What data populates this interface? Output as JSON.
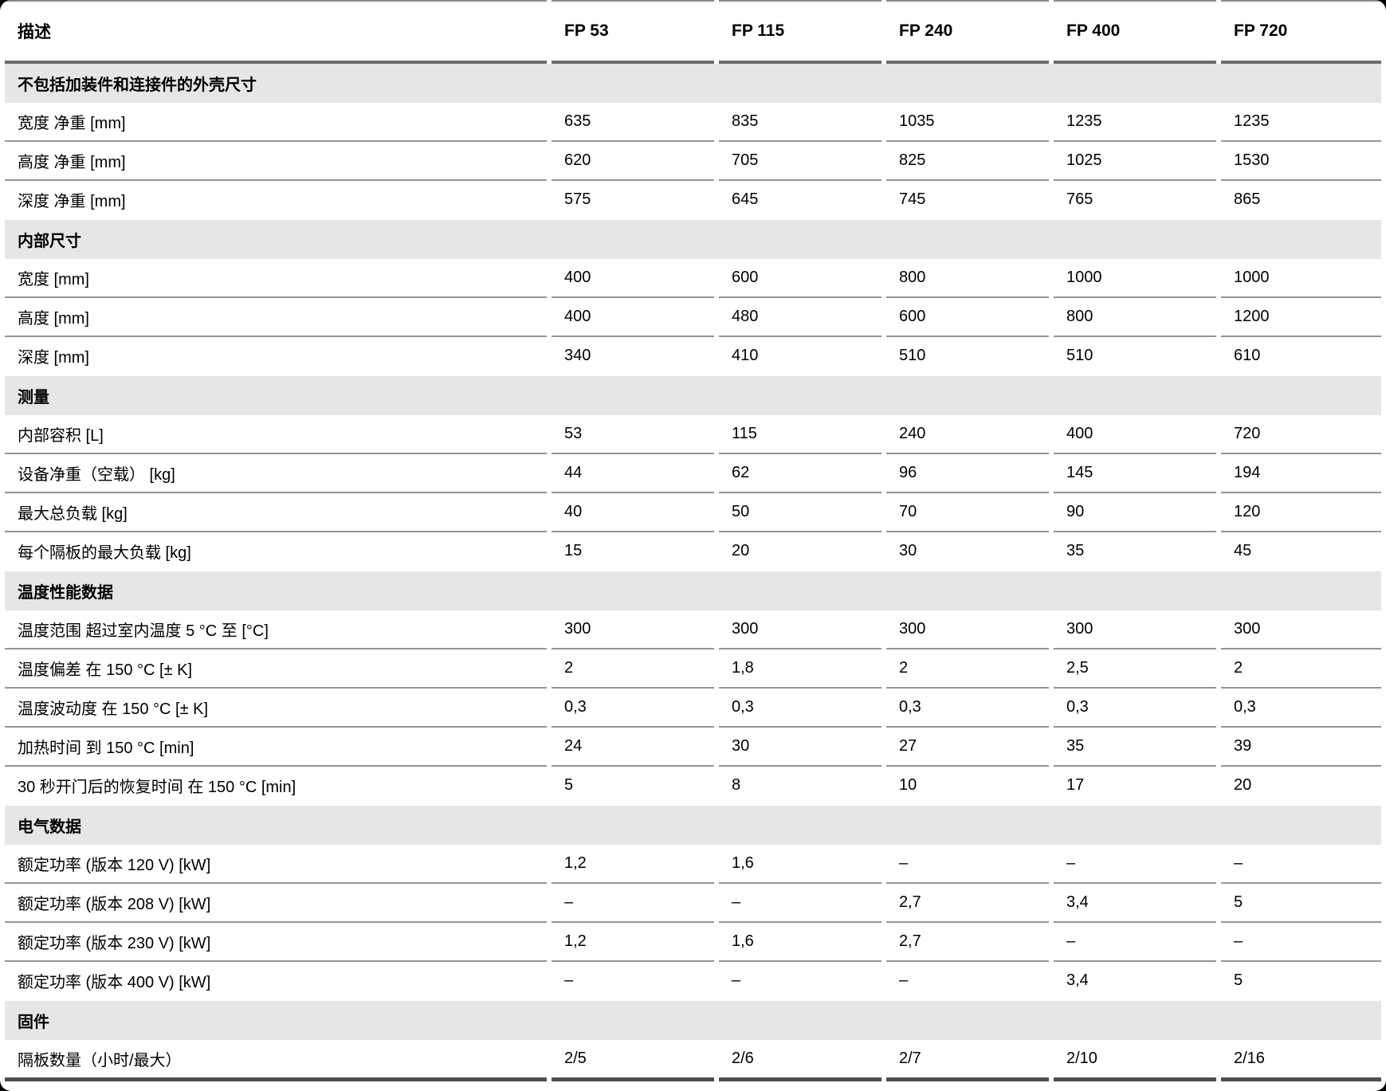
{
  "colors": {
    "section_band": "#e6e6e6",
    "row_separator": "#949494",
    "header_underline": "#6b6b6b",
    "table_top_border": "#8a8a8a",
    "table_bottom_border": "#4e4e4e",
    "text": "#000000",
    "background": "#ffffff"
  },
  "table": {
    "header": {
      "description": "描述",
      "models": [
        "FP 53",
        "FP 115",
        "FP 240",
        "FP 400",
        "FP 720"
      ]
    },
    "sections": [
      {
        "title": "不包括加装件和连接件的外壳尺寸",
        "rows": [
          {
            "label": "宽度 净重 [mm]",
            "values": [
              "635",
              "835",
              "1035",
              "1235",
              "1235"
            ]
          },
          {
            "label": "高度 净重 [mm]",
            "values": [
              "620",
              "705",
              "825",
              "1025",
              "1530"
            ]
          },
          {
            "label": "深度 净重 [mm]",
            "values": [
              "575",
              "645",
              "745",
              "765",
              "865"
            ]
          }
        ]
      },
      {
        "title": "内部尺寸",
        "rows": [
          {
            "label": "宽度 [mm]",
            "values": [
              "400",
              "600",
              "800",
              "1000",
              "1000"
            ]
          },
          {
            "label": "高度 [mm]",
            "values": [
              "400",
              "480",
              "600",
              "800",
              "1200"
            ]
          },
          {
            "label": "深度 [mm]",
            "values": [
              "340",
              "410",
              "510",
              "510",
              "610"
            ]
          }
        ]
      },
      {
        "title": "测量",
        "rows": [
          {
            "label": "内部容积 [L]",
            "values": [
              "53",
              "115",
              "240",
              "400",
              "720"
            ]
          },
          {
            "label": "设备净重（空载） [kg]",
            "values": [
              "44",
              "62",
              "96",
              "145",
              "194"
            ]
          },
          {
            "label": "最大总负载 [kg]",
            "values": [
              "40",
              "50",
              "70",
              "90",
              "120"
            ]
          },
          {
            "label": "每个隔板的最大负载 [kg]",
            "values": [
              "15",
              "20",
              "30",
              "35",
              "45"
            ]
          }
        ]
      },
      {
        "title": "温度性能数据",
        "rows": [
          {
            "label": "温度范围 超过室内温度 5 °C 至 [°C]",
            "values": [
              "300",
              "300",
              "300",
              "300",
              "300"
            ]
          },
          {
            "label": "温度偏差 在 150 °C [± K]",
            "values": [
              "2",
              "1,8",
              "2",
              "2,5",
              "2"
            ]
          },
          {
            "label": "温度波动度 在 150 °C [± K]",
            "values": [
              "0,3",
              "0,3",
              "0,3",
              "0,3",
              "0,3"
            ]
          },
          {
            "label": "加热时间 到 150 °C [min]",
            "values": [
              "24",
              "30",
              "27",
              "35",
              "39"
            ]
          },
          {
            "label": "30 秒开门后的恢复时间 在 150 °C [min]",
            "values": [
              "5",
              "8",
              "10",
              "17",
              "20"
            ]
          }
        ]
      },
      {
        "title": "电气数据",
        "rows": [
          {
            "label": "额定功率 (版本 120 V) [kW]",
            "values": [
              "1,2",
              "1,6",
              "–",
              "–",
              "–"
            ]
          },
          {
            "label": "额定功率 (版本 208 V) [kW]",
            "values": [
              "–",
              "–",
              "2,7",
              "3,4",
              "5"
            ]
          },
          {
            "label": "额定功率 (版本 230 V) [kW]",
            "values": [
              "1,2",
              "1,6",
              "2,7",
              "–",
              "–"
            ]
          },
          {
            "label": "额定功率 (版本 400 V) [kW]",
            "values": [
              "–",
              "–",
              "–",
              "3,4",
              "5"
            ]
          }
        ]
      },
      {
        "title": "固件",
        "rows": [
          {
            "label": "隔板数量（小时/最大）",
            "values": [
              "2/5",
              "2/6",
              "2/7",
              "2/10",
              "2/16"
            ]
          }
        ]
      }
    ]
  }
}
